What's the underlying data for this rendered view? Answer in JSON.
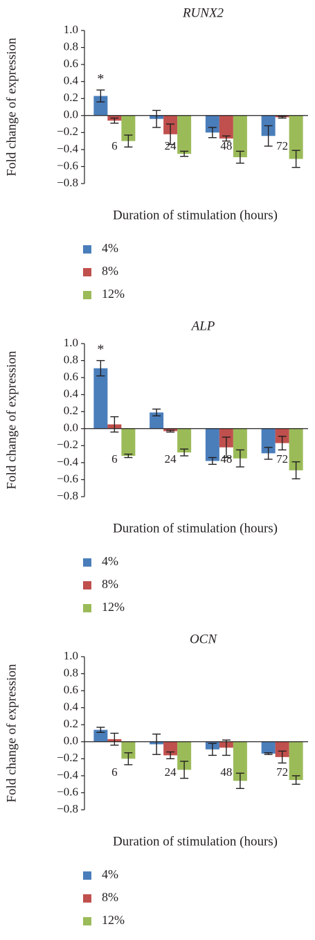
{
  "chart_data": [
    {
      "type": "bar",
      "title": "RUNX2",
      "categories": [
        "6",
        "24",
        "48",
        "72"
      ],
      "xlabel": "Duration of stimulation (hours)",
      "ylabel": "Fold change of expression",
      "ylim": [
        -0.8,
        1.0
      ],
      "yticks": [
        "1.0",
        "0.8",
        "0.6",
        "0.4",
        "0.2",
        "0.0",
        "−0.2",
        "−0.4",
        "−0.6",
        "−0.8"
      ],
      "ytick_values": [
        1.0,
        0.8,
        0.6,
        0.4,
        0.2,
        0.0,
        -0.2,
        -0.4,
        -0.6,
        -0.8
      ],
      "legend_position": "bottom-left",
      "series": [
        {
          "name": "4%",
          "color": "#4a7ebb",
          "values": [
            0.23,
            -0.04,
            -0.2,
            -0.24
          ],
          "errors": [
            0.07,
            0.1,
            0.06,
            0.12
          ]
        },
        {
          "name": "8%",
          "color": "#c0504d",
          "values": [
            -0.06,
            -0.22,
            -0.27,
            -0.02
          ],
          "errors": [
            0.03,
            0.12,
            0.03,
            0.01
          ]
        },
        {
          "name": "12%",
          "color": "#9bbb59",
          "values": [
            -0.3,
            -0.45,
            -0.49,
            -0.51
          ],
          "errors": [
            0.07,
            0.03,
            0.07,
            0.1
          ]
        }
      ],
      "annotations": [
        {
          "text": "*",
          "category": "6",
          "series": "4%"
        }
      ]
    },
    {
      "type": "bar",
      "title": "ALP",
      "categories": [
        "6",
        "24",
        "48",
        "72"
      ],
      "xlabel": "Duration of stimulation (hours)",
      "ylabel": "Fold change of expression",
      "ylim": [
        -0.8,
        1.0
      ],
      "yticks": [
        "1.0",
        "0.8",
        "0.6",
        "0.4",
        "0.2",
        "0.0",
        "−0.2",
        "−0.4",
        "−0.6",
        "−0.8"
      ],
      "ytick_values": [
        1.0,
        0.8,
        0.6,
        0.4,
        0.2,
        0.0,
        -0.2,
        -0.4,
        -0.6,
        -0.8
      ],
      "legend_position": "bottom-left",
      "series": [
        {
          "name": "4%",
          "color": "#4a7ebb",
          "values": [
            0.71,
            0.19,
            -0.38,
            -0.29
          ],
          "errors": [
            0.09,
            0.04,
            0.04,
            0.07
          ]
        },
        {
          "name": "8%",
          "color": "#c0504d",
          "values": [
            0.05,
            -0.03,
            -0.22,
            -0.17
          ],
          "errors": [
            0.09,
            0.01,
            0.12,
            0.08
          ]
        },
        {
          "name": "12%",
          "color": "#9bbb59",
          "values": [
            -0.32,
            -0.28,
            -0.35,
            -0.49
          ],
          "errors": [
            0.02,
            0.04,
            0.1,
            0.1
          ]
        }
      ],
      "annotations": [
        {
          "text": "*",
          "category": "6",
          "series": "4%"
        }
      ]
    },
    {
      "type": "bar",
      "title": "OCN",
      "categories": [
        "6",
        "24",
        "48",
        "72"
      ],
      "xlabel": "Duration of stimulation (hours)",
      "ylabel": "Fold change of expression",
      "ylim": [
        -0.8,
        1.0
      ],
      "yticks": [
        "1.0",
        "0.8",
        "0.6",
        "0.4",
        "0.2",
        "0.0",
        "−0.2",
        "−0.4",
        "−0.6",
        "−0.8"
      ],
      "ytick_values": [
        1.0,
        0.8,
        0.6,
        0.4,
        0.2,
        0.0,
        -0.2,
        -0.4,
        -0.6,
        -0.8
      ],
      "legend_position": "bottom-left",
      "series": [
        {
          "name": "4%",
          "color": "#4a7ebb",
          "values": [
            0.14,
            -0.03,
            -0.09,
            -0.14
          ],
          "errors": [
            0.03,
            0.12,
            0.07,
            0.01
          ]
        },
        {
          "name": "8%",
          "color": "#c0504d",
          "values": [
            0.03,
            -0.16,
            -0.07,
            -0.18
          ],
          "errors": [
            0.07,
            0.04,
            0.09,
            0.07
          ]
        },
        {
          "name": "12%",
          "color": "#9bbb59",
          "values": [
            -0.2,
            -0.33,
            -0.46,
            -0.45
          ],
          "errors": [
            0.07,
            0.1,
            0.09,
            0.05
          ]
        }
      ],
      "annotations": []
    }
  ]
}
